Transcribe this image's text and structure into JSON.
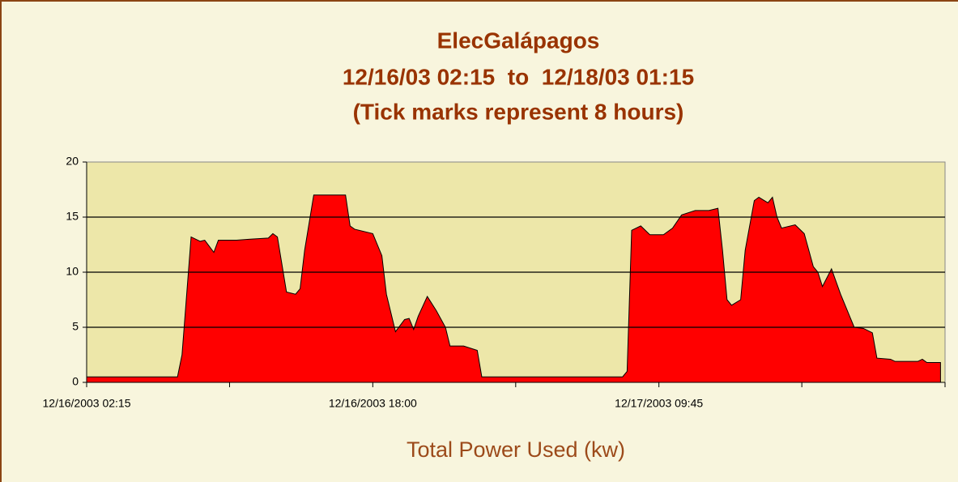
{
  "chart_data": {
    "type": "area",
    "title": "ElecGalápagos",
    "subtitle": "12/16/03 02:15  to  12/18/03 01:15",
    "note": "(Tick marks represent 8 hours)",
    "x_label": "Total Power Used (kw)",
    "color": "#ff0000",
    "x": [
      "12/16/2003 02:15",
      "12/16/2003 07:15",
      "12/16/2003 07:30",
      "12/16/2003 08:00",
      "12/16/2003 08:30",
      "12/16/2003 08:45",
      "12/16/2003 09:15",
      "12/16/2003 09:30",
      "12/16/2003 10:30",
      "12/16/2003 11:15",
      "12/16/2003 12:15",
      "12/16/2003 12:30",
      "12/16/2003 12:45",
      "12/16/2003 13:15",
      "12/16/2003 13:45",
      "12/16/2003 14:00",
      "12/16/2003 14:15",
      "12/16/2003 14:45",
      "12/16/2003 16:30",
      "12/16/2003 16:45",
      "12/16/2003 17:00",
      "12/16/2003 18:00",
      "12/16/2003 18:30",
      "12/16/2003 18:45",
      "12/16/2003 19:15",
      "12/16/2003 19:45",
      "12/16/2003 20:00",
      "12/16/2003 20:15",
      "12/16/2003 20:30",
      "12/16/2003 21:00",
      "12/16/2003 21:30",
      "12/16/2003 22:00",
      "12/16/2003 22:15",
      "12/16/2003 23:00",
      "12/16/2003 23:45",
      "12/17/2003 00:00",
      "12/17/2003 07:45",
      "12/17/2003 08:00",
      "12/17/2003 08:15",
      "12/17/2003 08:45",
      "12/17/2003 09:15",
      "12/17/2003 10:00",
      "12/17/2003 10:30",
      "12/17/2003 11:00",
      "12/17/2003 11:45",
      "12/17/2003 12:30",
      "12/17/2003 13:00",
      "12/17/2003 13:15",
      "12/17/2003 13:30",
      "12/17/2003 13:45",
      "12/17/2003 14:15",
      "12/17/2003 14:30",
      "12/17/2003 15:00",
      "12/17/2003 15:15",
      "12/17/2003 15:45",
      "12/17/2003 16:00",
      "12/17/2003 16:15",
      "12/17/2003 16:30",
      "12/17/2003 17:15",
      "12/17/2003 17:45",
      "12/17/2003 18:15",
      "12/17/2003 18:30",
      "12/17/2003 18:45",
      "12/17/2003 19:15",
      "12/17/2003 19:45",
      "12/17/2003 20:15",
      "12/17/2003 20:30",
      "12/17/2003 21:00",
      "12/17/2003 21:30",
      "12/17/2003 21:45",
      "12/17/2003 22:30",
      "12/17/2003 22:45",
      "12/18/2003 00:00",
      "12/18/2003 00:15",
      "12/18/2003 00:30",
      "12/18/2003 01:15"
    ],
    "values": [
      0.5,
      0.5,
      2.5,
      13.2,
      12.8,
      12.9,
      11.8,
      12.9,
      12.9,
      13.0,
      13.1,
      13.5,
      13.2,
      8.2,
      8.0,
      8.5,
      12,
      17,
      17,
      14.2,
      13.9,
      13.5,
      11.5,
      8,
      4.6,
      5.7,
      5.8,
      4.8,
      6,
      7.8,
      6.5,
      5,
      3.3,
      3.3,
      2.9,
      0.5,
      0.5,
      1,
      13.8,
      14.2,
      13.4,
      13.4,
      14,
      15.2,
      15.6,
      15.6,
      15.8,
      12,
      7.5,
      7,
      7.5,
      12,
      16.5,
      16.8,
      16.3,
      16.8,
      15,
      14,
      14.3,
      13.5,
      10.5,
      10,
      8.7,
      10.3,
      8,
      6,
      5,
      4.9,
      4.5,
      2.2,
      2.1,
      1.9,
      1.9,
      2.1,
      1.8,
      1.8
    ],
    "xlim": [
      "12/16/2003 02:15",
      "12/18/2003 01:30"
    ],
    "xticks": [
      "12/16/2003 02:15",
      {
        "value": "12/16/2003 10:07",
        "label": null
      },
      "12/16/2003 18:00",
      {
        "value": "12/17/2003 01:52",
        "label": null
      },
      "12/17/2003 09:45",
      {
        "value": "12/17/2003 17:37",
        "label": null
      },
      {
        "value": "12/18/2003 01:30",
        "label": null
      }
    ],
    "ylim": [
      0,
      20
    ],
    "yticks": [
      0,
      5,
      10,
      15,
      20
    ],
    "grid": true
  }
}
